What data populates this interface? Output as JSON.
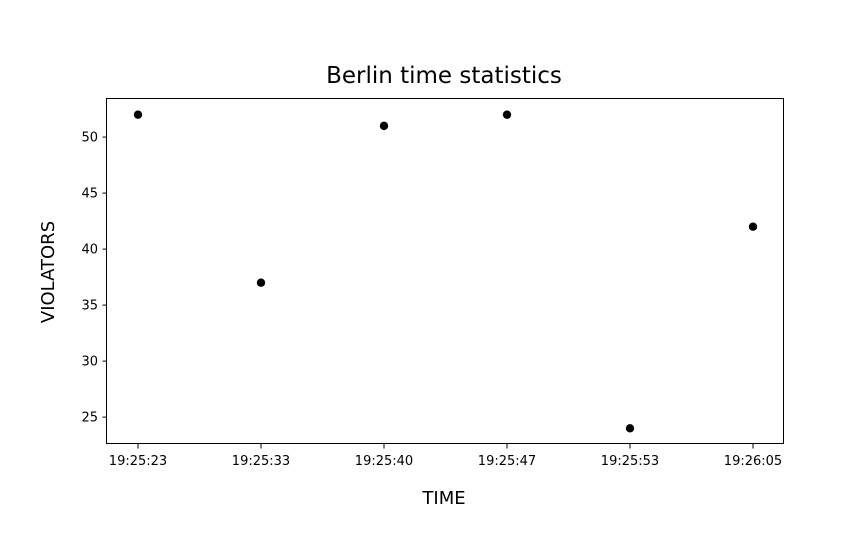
{
  "chart_data": {
    "type": "scatter",
    "title": "Berlin time statistics",
    "xlabel": "TIME",
    "ylabel": "VIOLATORS",
    "categories": [
      "19:25:23",
      "19:25:33",
      "19:25:40",
      "19:25:47",
      "19:25:53",
      "19:26:05"
    ],
    "series": [
      {
        "values": [
          52,
          37,
          51,
          52,
          24,
          42
        ]
      }
    ],
    "yticks": [
      25,
      30,
      35,
      40,
      45,
      50
    ],
    "ylim": [
      22.6,
      53.4
    ],
    "grid": false,
    "marker_color": "#000000"
  }
}
